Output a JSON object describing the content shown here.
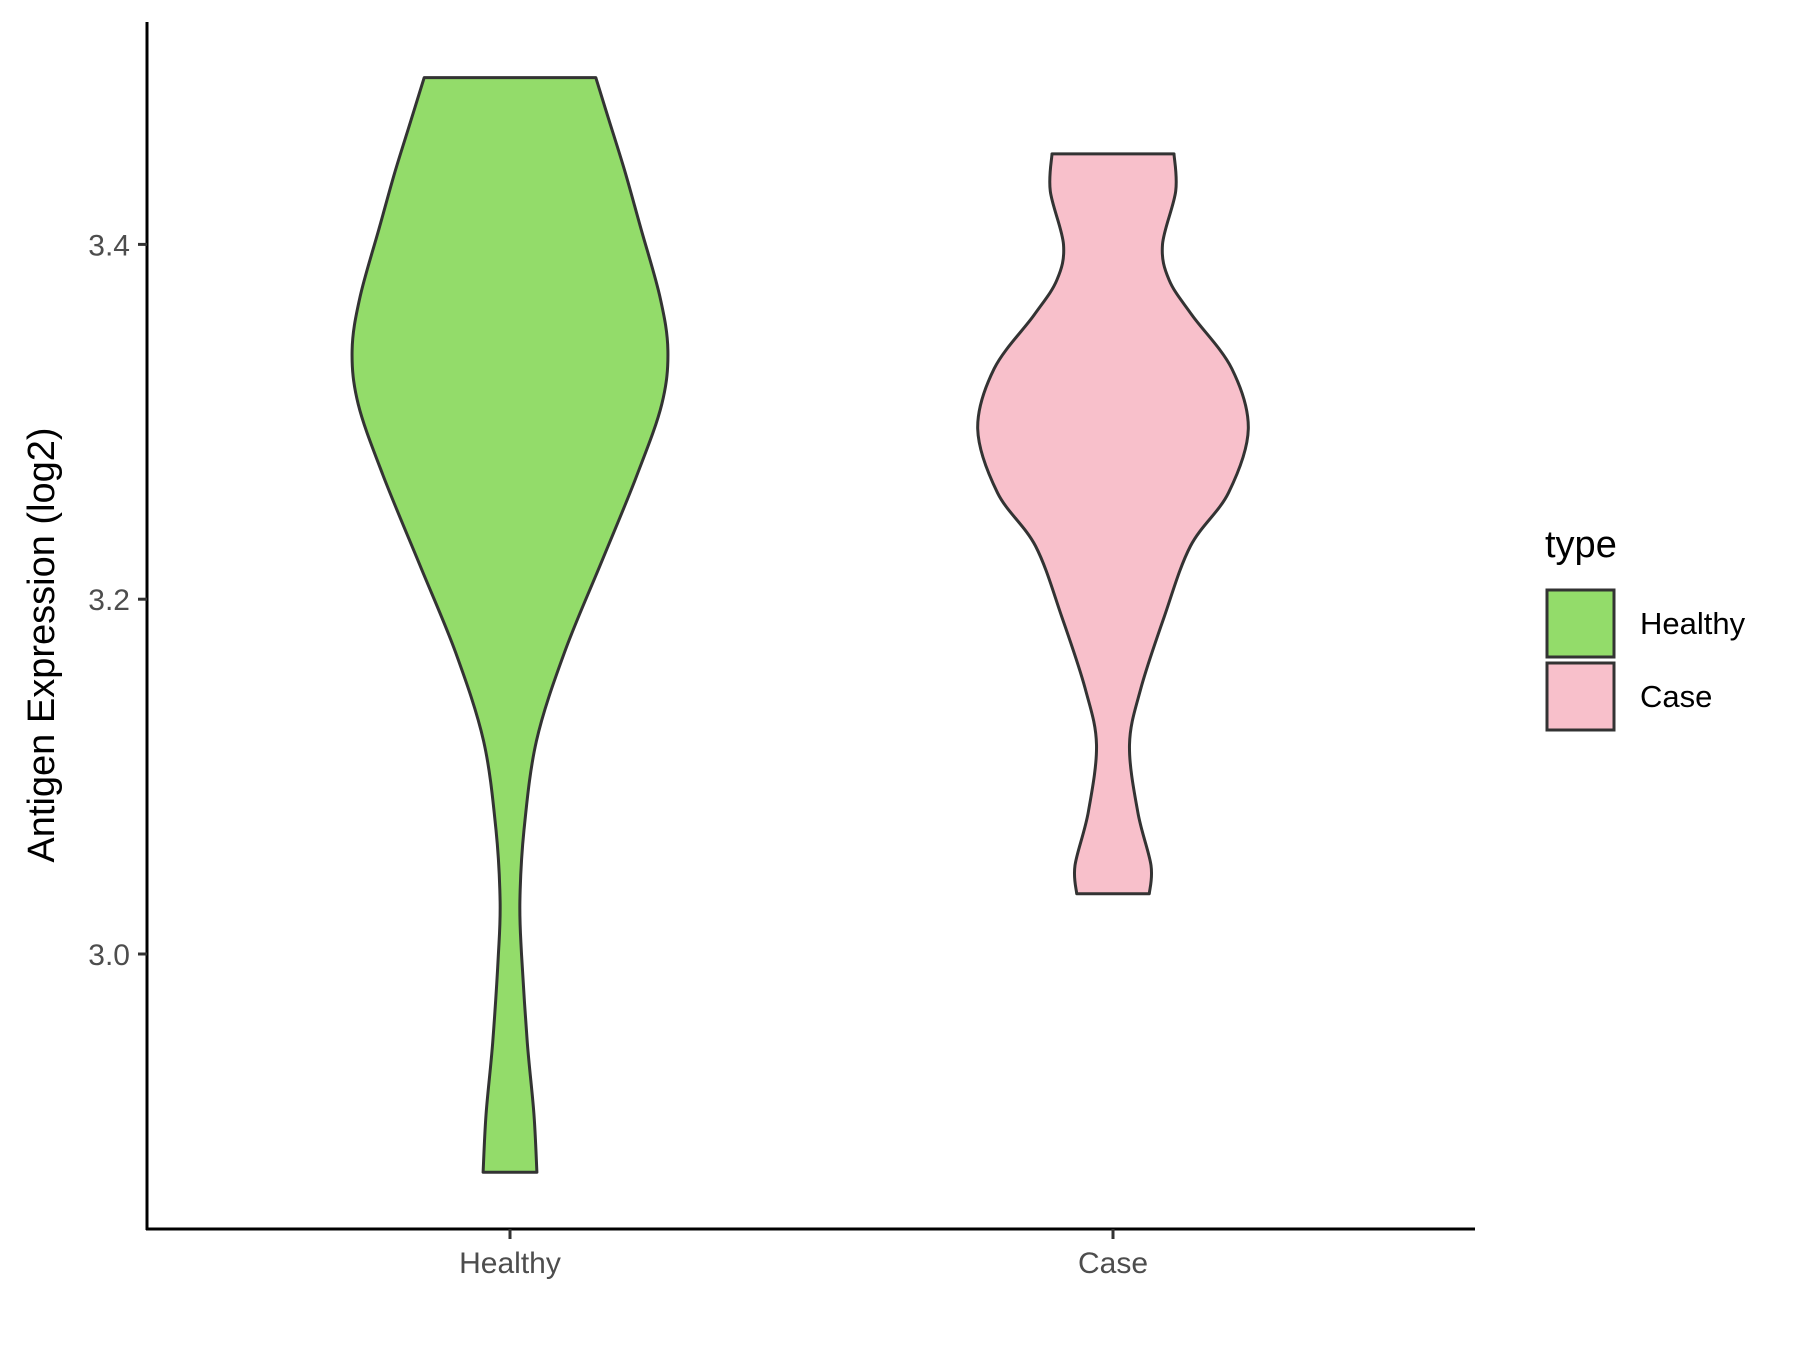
{
  "chart_data": {
    "type": "violin",
    "xlabel": "",
    "ylabel": "Antigen Expression (log2)",
    "ylim": [
      2.85,
      3.535
    ],
    "yticks": [
      3.0,
      3.2,
      3.4
    ],
    "ytick_labels": [
      "3.0",
      "3.2",
      "3.4"
    ],
    "categories": [
      "Healthy",
      "Case"
    ],
    "grid": false,
    "legend": {
      "title": "type",
      "placement": "right",
      "entries": [
        "Healthy",
        "Case"
      ]
    },
    "series": [
      {
        "name": "Healthy",
        "color": "#93dc6a",
        "min": 2.877,
        "max": 3.494,
        "density_profile": [
          [
            2.877,
            0.163
          ],
          [
            2.91,
            0.145
          ],
          [
            2.95,
            0.105
          ],
          [
            3.0,
            0.07
          ],
          [
            3.03,
            0.06
          ],
          [
            3.07,
            0.085
          ],
          [
            3.12,
            0.16
          ],
          [
            3.17,
            0.33
          ],
          [
            3.22,
            0.55
          ],
          [
            3.27,
            0.77
          ],
          [
            3.31,
            0.92
          ],
          [
            3.34,
            0.957
          ],
          [
            3.37,
            0.91
          ],
          [
            3.41,
            0.79
          ],
          [
            3.44,
            0.7
          ],
          [
            3.47,
            0.6
          ],
          [
            3.494,
            0.52
          ]
        ]
      },
      {
        "name": "Case",
        "color": "#f8c0cb",
        "min": 3.034,
        "max": 3.451,
        "density_profile": [
          [
            3.034,
            0.22
          ],
          [
            3.05,
            0.23
          ],
          [
            3.08,
            0.15
          ],
          [
            3.118,
            0.1
          ],
          [
            3.15,
            0.17
          ],
          [
            3.19,
            0.31
          ],
          [
            3.23,
            0.47
          ],
          [
            3.26,
            0.7
          ],
          [
            3.296,
            0.82
          ],
          [
            3.33,
            0.72
          ],
          [
            3.36,
            0.48
          ],
          [
            3.38,
            0.34
          ],
          [
            3.4,
            0.3
          ],
          [
            3.43,
            0.38
          ],
          [
            3.451,
            0.37
          ]
        ]
      }
    ]
  }
}
